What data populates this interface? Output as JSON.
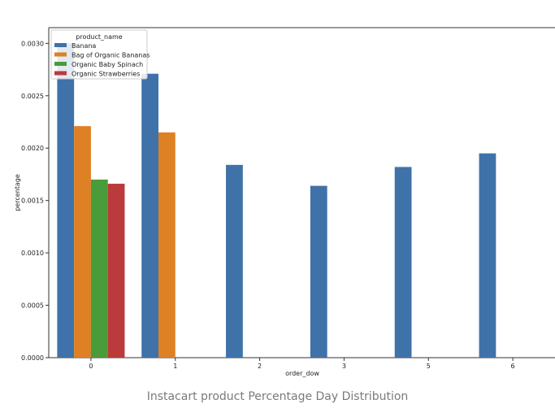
{
  "caption": "Instacart product Percentage Day Distribution",
  "chart_data": {
    "type": "bar",
    "xlabel": "order_dow",
    "ylabel": "percentage",
    "categories": [
      "0",
      "1",
      "2",
      "3",
      "5",
      "6"
    ],
    "ylim": [
      0,
      0.00315
    ],
    "yticks": [
      "0.0000",
      "0.0005",
      "0.0010",
      "0.0015",
      "0.0020",
      "0.0025",
      "0.0030"
    ],
    "legend": {
      "title": "product_name",
      "placement": "top-left"
    },
    "series": [
      {
        "name": "Banana",
        "color": "#3f72a9",
        "values": [
          0.003,
          0.00271,
          0.00184,
          0.00164,
          0.00182,
          0.00195
        ]
      },
      {
        "name": "Bag of Organic Bananas",
        "color": "#de8024",
        "values": [
          0.00221,
          0.00215,
          null,
          null,
          null,
          null
        ]
      },
      {
        "name": "Organic Baby Spinach",
        "color": "#4a9b39",
        "values": [
          0.0017,
          null,
          null,
          null,
          null,
          null
        ]
      },
      {
        "name": "Organic Strawberries",
        "color": "#bb3a3c",
        "values": [
          0.00166,
          null,
          null,
          null,
          null,
          null
        ]
      }
    ]
  }
}
